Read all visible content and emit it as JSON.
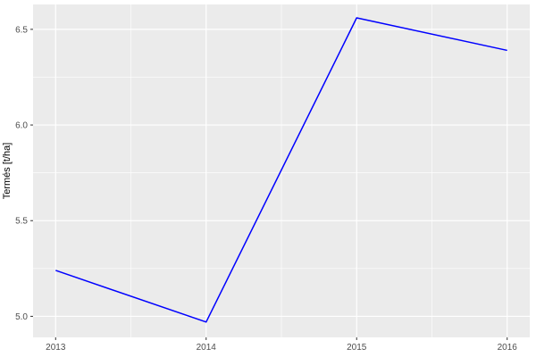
{
  "chart_data": {
    "type": "line",
    "title": "",
    "xlabel": "",
    "ylabel": "Termés [t/ha]",
    "x": [
      2013,
      2014,
      2015,
      2016
    ],
    "values": [
      5.24,
      4.97,
      6.56,
      6.39
    ],
    "x_ticks": [
      "2013",
      "2014",
      "2015",
      "2016"
    ],
    "x_tick_values": [
      2013,
      2014,
      2015,
      2016
    ],
    "y_ticks": [
      "5.0",
      "5.5",
      "6.0",
      "6.5"
    ],
    "y_tick_values": [
      5.0,
      5.5,
      6.0,
      6.5
    ],
    "x_minor": [
      2013.5,
      2014.5,
      2015.5
    ],
    "y_minor": [
      5.25,
      5.75,
      6.25
    ],
    "xlim": [
      2012.85,
      2016.15
    ],
    "ylim": [
      4.89,
      6.63
    ],
    "grid": true,
    "legend": "none",
    "theme": {
      "outer_bg": "#FFFFFF",
      "panel_bg": "#EBEBEB",
      "grid_color": "#FFFFFF",
      "line_color": "#0000FF",
      "tick_label_color": "#4D4D4D",
      "axis_title_color": "#000000",
      "tick_mark_color": "#333333"
    }
  }
}
